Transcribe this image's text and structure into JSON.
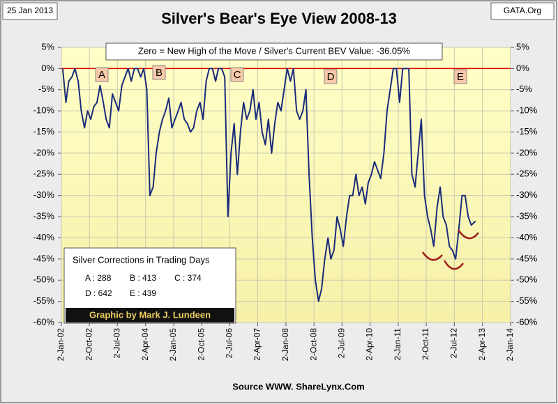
{
  "chart_data": {
    "type": "line",
    "title": "Silver's Bear's Eye View 2008-13",
    "date_label": "25 Jan 2013",
    "source_label": "GATA.Org",
    "annotation": "Zero = New High of the Move / Silver's Current BEV Value: -36.05%",
    "x_label": "Source WWW. ShareLynx.Com",
    "credit": "Graphic by Mark J. Lundeen",
    "corrections_title": "Silver Corrections in Trading Days",
    "corrections": [
      "A : 288",
      "B : 413",
      "C : 374",
      "D : 642",
      "E : 439"
    ],
    "markers": [
      "A",
      "B",
      "C",
      "D",
      "E"
    ],
    "grid": true,
    "reference_line": {
      "value": 0,
      "color": "#e00000"
    },
    "xlim": [
      "2002-01-02",
      "2014-01-02"
    ],
    "xticks": [
      {
        "value": "2002-01-02",
        "label": "2-Jan-02"
      },
      {
        "value": "2002-10-02",
        "label": "2-Oct-02"
      },
      {
        "value": "2003-07-02",
        "label": "2-Jul-03"
      },
      {
        "value": "2004-04-02",
        "label": "2-Apr-04"
      },
      {
        "value": "2005-01-02",
        "label": "2-Jan-05"
      },
      {
        "value": "2005-10-02",
        "label": "2-Oct-05"
      },
      {
        "value": "2006-07-02",
        "label": "2-Jul-06"
      },
      {
        "value": "2007-04-02",
        "label": "2-Apr-07"
      },
      {
        "value": "2008-01-02",
        "label": "2-Jan-08"
      },
      {
        "value": "2008-10-02",
        "label": "2-Oct-08"
      },
      {
        "value": "2009-07-02",
        "label": "2-Jul-09"
      },
      {
        "value": "2010-04-02",
        "label": "2-Apr-10"
      },
      {
        "value": "2011-01-02",
        "label": "2-Jan-11"
      },
      {
        "value": "2011-10-02",
        "label": "2-Oct-11"
      },
      {
        "value": "2012-07-02",
        "label": "2-Jul-12"
      },
      {
        "value": "2013-04-02",
        "label": "2-Apr-13"
      },
      {
        "value": "2014-01-02",
        "label": "2-Jan-14"
      }
    ],
    "ylim": [
      -60,
      5
    ],
    "yticks": [
      {
        "value": 5,
        "label": "5%"
      },
      {
        "value": 0,
        "label": "0%"
      },
      {
        "value": -5,
        "label": "-5%"
      },
      {
        "value": -10,
        "label": "-10%"
      },
      {
        "value": -15,
        "label": "-15%"
      },
      {
        "value": -20,
        "label": "-20%"
      },
      {
        "value": -25,
        "label": "-25%"
      },
      {
        "value": -30,
        "label": "-30%"
      },
      {
        "value": -35,
        "label": "-35%"
      },
      {
        "value": -40,
        "label": "-40%"
      },
      {
        "value": -45,
        "label": "-45%"
      },
      {
        "value": -50,
        "label": "-50%"
      },
      {
        "value": -55,
        "label": "-55%"
      },
      {
        "value": -60,
        "label": "-60%"
      }
    ],
    "y2lim": [
      -60,
      5
    ],
    "y2ticks": [
      {
        "value": 5,
        "label": "5%"
      },
      {
        "value": 0,
        "label": "0%"
      },
      {
        "value": -5,
        "label": "-5%"
      },
      {
        "value": -10,
        "label": "-10%"
      },
      {
        "value": -15,
        "label": "-15%"
      },
      {
        "value": -20,
        "label": "-20%"
      },
      {
        "value": -25,
        "label": "-25%"
      },
      {
        "value": -30,
        "label": "-30%"
      },
      {
        "value": -35,
        "label": "-35%"
      },
      {
        "value": -40,
        "label": "-40%"
      },
      {
        "value": -45,
        "label": "-45%"
      },
      {
        "value": -50,
        "label": "-50%"
      },
      {
        "value": -55,
        "label": "-55%"
      },
      {
        "value": -60,
        "label": "-60%"
      }
    ],
    "x": [
      "2002-01-15",
      "2002-02-15",
      "2002-03-15",
      "2002-04-15",
      "2002-05-15",
      "2002-06-15",
      "2002-07-15",
      "2002-08-15",
      "2002-09-15",
      "2002-10-15",
      "2002-11-15",
      "2002-12-15",
      "2003-01-15",
      "2003-02-15",
      "2003-03-15",
      "2003-04-15",
      "2003-05-15",
      "2003-06-15",
      "2003-07-15",
      "2003-08-15",
      "2003-09-15",
      "2003-10-15",
      "2003-11-15",
      "2003-12-15",
      "2004-01-15",
      "2004-02-15",
      "2004-03-15",
      "2004-04-15",
      "2004-05-15",
      "2004-06-15",
      "2004-07-15",
      "2004-08-15",
      "2004-09-15",
      "2004-10-15",
      "2004-11-15",
      "2004-12-15",
      "2005-01-15",
      "2005-02-15",
      "2005-03-15",
      "2005-04-15",
      "2005-05-15",
      "2005-06-15",
      "2005-07-15",
      "2005-08-15",
      "2005-09-15",
      "2005-10-15",
      "2005-11-15",
      "2005-12-15",
      "2006-01-15",
      "2006-02-15",
      "2006-03-15",
      "2006-04-15",
      "2006-05-15",
      "2006-06-15",
      "2006-07-15",
      "2006-08-15",
      "2006-09-15",
      "2006-10-15",
      "2006-11-15",
      "2006-12-15",
      "2007-01-15",
      "2007-02-15",
      "2007-03-15",
      "2007-04-15",
      "2007-05-15",
      "2007-06-15",
      "2007-07-15",
      "2007-08-15",
      "2007-09-15",
      "2007-10-15",
      "2007-11-15",
      "2007-12-15",
      "2008-01-15",
      "2008-02-15",
      "2008-03-15",
      "2008-04-15",
      "2008-05-15",
      "2008-06-15",
      "2008-07-15",
      "2008-08-15",
      "2008-09-15",
      "2008-10-15",
      "2008-11-15",
      "2008-12-15",
      "2009-01-15",
      "2009-02-15",
      "2009-03-15",
      "2009-04-15",
      "2009-05-15",
      "2009-06-15",
      "2009-07-15",
      "2009-08-15",
      "2009-09-15",
      "2009-10-15",
      "2009-11-15",
      "2009-12-15",
      "2010-01-15",
      "2010-02-15",
      "2010-03-15",
      "2010-04-15",
      "2010-05-15",
      "2010-06-15",
      "2010-07-15",
      "2010-08-15",
      "2010-09-15",
      "2010-10-15",
      "2010-11-15",
      "2010-12-15",
      "2011-01-15",
      "2011-02-15",
      "2011-03-15",
      "2011-04-15",
      "2011-05-15",
      "2011-06-15",
      "2011-07-15",
      "2011-08-15",
      "2011-09-15",
      "2011-10-15",
      "2011-11-15",
      "2011-12-15",
      "2012-01-15",
      "2012-02-15",
      "2012-03-15",
      "2012-04-15",
      "2012-05-15",
      "2012-06-15",
      "2012-07-15",
      "2012-08-15",
      "2012-09-15",
      "2012-10-15",
      "2012-11-15",
      "2012-12-15",
      "2013-01-25"
    ],
    "series": [
      {
        "name": "Silver BEV",
        "color": "#1a2b7a",
        "values": [
          0,
          -8,
          -3,
          -2,
          0,
          -3,
          -10,
          -14,
          -10,
          -12,
          -9,
          -8,
          -4,
          -8,
          -12,
          -14,
          -6,
          -8,
          -10,
          -4,
          -2,
          0,
          -3,
          0,
          0,
          -2,
          0,
          -5,
          -30,
          -28,
          -20,
          -15,
          -12,
          -10,
          -7,
          -14,
          -12,
          -10,
          -8,
          -12,
          -13,
          -15,
          -14,
          -10,
          -8,
          -12,
          -3,
          0,
          0,
          -3,
          0,
          0,
          -2,
          -35,
          -20,
          -13,
          -25,
          -15,
          -8,
          -12,
          -10,
          -5,
          -12,
          -8,
          -15,
          -18,
          -12,
          -20,
          -13,
          -8,
          -10,
          -5,
          0,
          -3,
          0,
          -10,
          -12,
          -10,
          -5,
          -25,
          -40,
          -50,
          -55,
          -52,
          -45,
          -40,
          -45,
          -43,
          -35,
          -38,
          -42,
          -35,
          -30,
          -30,
          -25,
          -30,
          -28,
          -32,
          -27,
          -25,
          -22,
          -24,
          -26,
          -20,
          -10,
          -5,
          0,
          0,
          -8,
          0,
          0,
          0,
          -25,
          -28,
          -20,
          -12,
          -30,
          -35,
          -38,
          -42,
          -33,
          -28,
          -35,
          -37,
          -42,
          -43,
          -45,
          -38,
          -30,
          -30,
          -35,
          -37,
          -36.05
        ]
      }
    ]
  }
}
